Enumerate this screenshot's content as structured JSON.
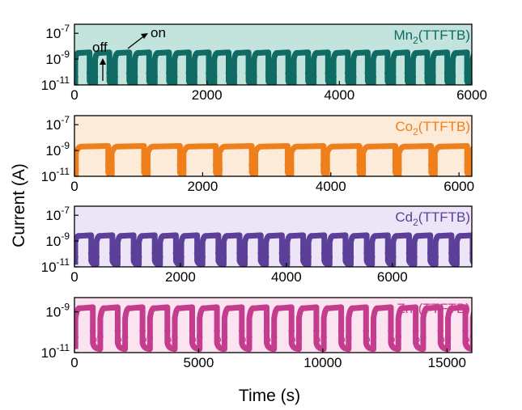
{
  "figure": {
    "xlabel": "Time (s)",
    "ylabel": "Current  (A)"
  },
  "chart_data": [
    {
      "type": "scatter",
      "title": "",
      "xlabel": "",
      "ylabel": "",
      "grid": false,
      "series": [
        {
          "name": "Mn2(TTFTB)",
          "period_s": 300,
          "on_fraction": 0.72,
          "on_current_A": 3e-09,
          "off_current_A": 1e-11
        }
      ],
      "xlim": [
        0,
        6000
      ],
      "ylim_log10": [
        -11,
        -6.3
      ],
      "xticks": [
        "0",
        "2000",
        "4000",
        "6000"
      ],
      "yticks": [
        {
          "exp": "-7"
        },
        {
          "exp": "-9"
        },
        {
          "exp": "-11"
        }
      ],
      "label": {
        "base": "Mn",
        "sub": "2",
        "tail": "(TTFTB)"
      },
      "colors": {
        "line": "#0f6b63",
        "bg": "#c3e3dd"
      },
      "annotations": [
        {
          "text": "on"
        },
        {
          "text": "off"
        }
      ]
    },
    {
      "type": "scatter",
      "title": "",
      "xlabel": "",
      "ylabel": "",
      "grid": false,
      "series": [
        {
          "name": "Co2(TTFTB)",
          "period_s": 560,
          "on_fraction": 0.9,
          "on_current_A": 2e-09,
          "off_current_A": 1e-11
        }
      ],
      "xlim": [
        0,
        6200
      ],
      "ylim_log10": [
        -11,
        -6.3
      ],
      "xticks": [
        "0",
        "2000",
        "4000",
        "6000"
      ],
      "yticks": [
        {
          "exp": "-7"
        },
        {
          "exp": "-9"
        },
        {
          "exp": "-11"
        }
      ],
      "label": {
        "base": "Co",
        "sub": "2",
        "tail": "(TTFTB)"
      },
      "colors": {
        "line": "#ef7f1a",
        "bg": "#fcebd9"
      }
    },
    {
      "type": "scatter",
      "title": "",
      "xlabel": "",
      "ylabel": "",
      "grid": false,
      "series": [
        {
          "name": "Cd2(TTFTB)",
          "period_s": 400,
          "on_fraction": 0.75,
          "on_current_A": 2.5e-09,
          "off_current_A": 1.5e-11
        }
      ],
      "xlim": [
        0,
        7500
      ],
      "ylim_log10": [
        -11,
        -6.3
      ],
      "xticks": [
        "0",
        "2000",
        "4000",
        "6000"
      ],
      "yticks": [
        {
          "exp": "-7"
        },
        {
          "exp": "-9"
        },
        {
          "exp": "-11"
        }
      ],
      "label": {
        "base": "Cd",
        "sub": "2",
        "tail": "(TTFTB)"
      },
      "colors": {
        "line": "#5b3f98",
        "bg": "#ece5f7"
      }
    },
    {
      "type": "scatter",
      "title": "",
      "xlabel": "",
      "ylabel": "",
      "grid": false,
      "series": [
        {
          "name": "Zn2(TTFTB)",
          "period_s": 1000,
          "on_fraction": 0.7,
          "on_current_A": 1.5e-09,
          "off_current_A": 1.5e-11
        }
      ],
      "xlim": [
        0,
        16000
      ],
      "ylim_log10": [
        -11,
        -8.3
      ],
      "xticks": [
        "0",
        "5000",
        "10000",
        "15000"
      ],
      "yticks": [
        {
          "exp": "-9"
        },
        {
          "exp": "-11"
        }
      ],
      "label": {
        "base": "Zn",
        "sub": "2",
        "tail": "(TTFTB)"
      },
      "colors": {
        "line": "#c43c8d",
        "bg": "#fbe4f0"
      }
    }
  ]
}
